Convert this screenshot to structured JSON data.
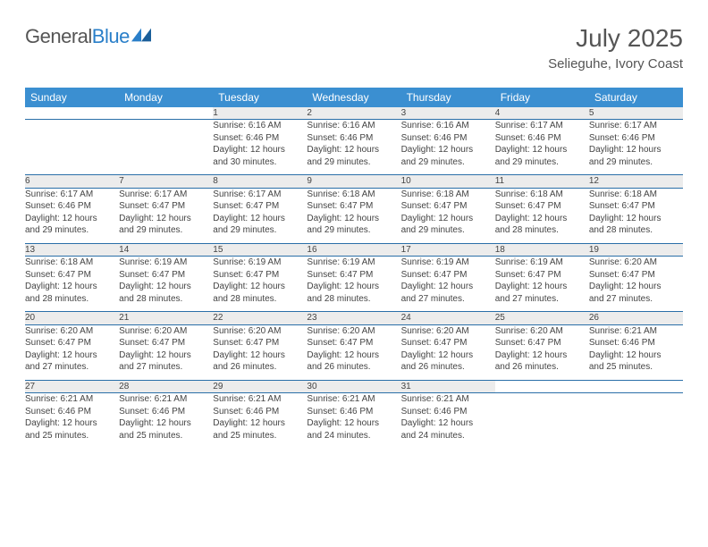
{
  "brand": {
    "part1": "General",
    "part2": "Blue"
  },
  "title": "July 2025",
  "location": "Selieguhe, Ivory Coast",
  "colors": {
    "header_bg": "#3b8fd1",
    "header_text": "#ffffff",
    "daynum_bg": "#ececec",
    "row_border": "#2a6fa8",
    "brand_blue": "#2a7fc9",
    "text": "#444444",
    "background": "#ffffff"
  },
  "weekdays": [
    "Sunday",
    "Monday",
    "Tuesday",
    "Wednesday",
    "Thursday",
    "Friday",
    "Saturday"
  ],
  "weeks": [
    [
      null,
      null,
      {
        "day": "1",
        "sunrise": "Sunrise: 6:16 AM",
        "sunset": "Sunset: 6:46 PM",
        "daylight1": "Daylight: 12 hours",
        "daylight2": "and 30 minutes."
      },
      {
        "day": "2",
        "sunrise": "Sunrise: 6:16 AM",
        "sunset": "Sunset: 6:46 PM",
        "daylight1": "Daylight: 12 hours",
        "daylight2": "and 29 minutes."
      },
      {
        "day": "3",
        "sunrise": "Sunrise: 6:16 AM",
        "sunset": "Sunset: 6:46 PM",
        "daylight1": "Daylight: 12 hours",
        "daylight2": "and 29 minutes."
      },
      {
        "day": "4",
        "sunrise": "Sunrise: 6:17 AM",
        "sunset": "Sunset: 6:46 PM",
        "daylight1": "Daylight: 12 hours",
        "daylight2": "and 29 minutes."
      },
      {
        "day": "5",
        "sunrise": "Sunrise: 6:17 AM",
        "sunset": "Sunset: 6:46 PM",
        "daylight1": "Daylight: 12 hours",
        "daylight2": "and 29 minutes."
      }
    ],
    [
      {
        "day": "6",
        "sunrise": "Sunrise: 6:17 AM",
        "sunset": "Sunset: 6:46 PM",
        "daylight1": "Daylight: 12 hours",
        "daylight2": "and 29 minutes."
      },
      {
        "day": "7",
        "sunrise": "Sunrise: 6:17 AM",
        "sunset": "Sunset: 6:47 PM",
        "daylight1": "Daylight: 12 hours",
        "daylight2": "and 29 minutes."
      },
      {
        "day": "8",
        "sunrise": "Sunrise: 6:17 AM",
        "sunset": "Sunset: 6:47 PM",
        "daylight1": "Daylight: 12 hours",
        "daylight2": "and 29 minutes."
      },
      {
        "day": "9",
        "sunrise": "Sunrise: 6:18 AM",
        "sunset": "Sunset: 6:47 PM",
        "daylight1": "Daylight: 12 hours",
        "daylight2": "and 29 minutes."
      },
      {
        "day": "10",
        "sunrise": "Sunrise: 6:18 AM",
        "sunset": "Sunset: 6:47 PM",
        "daylight1": "Daylight: 12 hours",
        "daylight2": "and 29 minutes."
      },
      {
        "day": "11",
        "sunrise": "Sunrise: 6:18 AM",
        "sunset": "Sunset: 6:47 PM",
        "daylight1": "Daylight: 12 hours",
        "daylight2": "and 28 minutes."
      },
      {
        "day": "12",
        "sunrise": "Sunrise: 6:18 AM",
        "sunset": "Sunset: 6:47 PM",
        "daylight1": "Daylight: 12 hours",
        "daylight2": "and 28 minutes."
      }
    ],
    [
      {
        "day": "13",
        "sunrise": "Sunrise: 6:18 AM",
        "sunset": "Sunset: 6:47 PM",
        "daylight1": "Daylight: 12 hours",
        "daylight2": "and 28 minutes."
      },
      {
        "day": "14",
        "sunrise": "Sunrise: 6:19 AM",
        "sunset": "Sunset: 6:47 PM",
        "daylight1": "Daylight: 12 hours",
        "daylight2": "and 28 minutes."
      },
      {
        "day": "15",
        "sunrise": "Sunrise: 6:19 AM",
        "sunset": "Sunset: 6:47 PM",
        "daylight1": "Daylight: 12 hours",
        "daylight2": "and 28 minutes."
      },
      {
        "day": "16",
        "sunrise": "Sunrise: 6:19 AM",
        "sunset": "Sunset: 6:47 PM",
        "daylight1": "Daylight: 12 hours",
        "daylight2": "and 28 minutes."
      },
      {
        "day": "17",
        "sunrise": "Sunrise: 6:19 AM",
        "sunset": "Sunset: 6:47 PM",
        "daylight1": "Daylight: 12 hours",
        "daylight2": "and 27 minutes."
      },
      {
        "day": "18",
        "sunrise": "Sunrise: 6:19 AM",
        "sunset": "Sunset: 6:47 PM",
        "daylight1": "Daylight: 12 hours",
        "daylight2": "and 27 minutes."
      },
      {
        "day": "19",
        "sunrise": "Sunrise: 6:20 AM",
        "sunset": "Sunset: 6:47 PM",
        "daylight1": "Daylight: 12 hours",
        "daylight2": "and 27 minutes."
      }
    ],
    [
      {
        "day": "20",
        "sunrise": "Sunrise: 6:20 AM",
        "sunset": "Sunset: 6:47 PM",
        "daylight1": "Daylight: 12 hours",
        "daylight2": "and 27 minutes."
      },
      {
        "day": "21",
        "sunrise": "Sunrise: 6:20 AM",
        "sunset": "Sunset: 6:47 PM",
        "daylight1": "Daylight: 12 hours",
        "daylight2": "and 27 minutes."
      },
      {
        "day": "22",
        "sunrise": "Sunrise: 6:20 AM",
        "sunset": "Sunset: 6:47 PM",
        "daylight1": "Daylight: 12 hours",
        "daylight2": "and 26 minutes."
      },
      {
        "day": "23",
        "sunrise": "Sunrise: 6:20 AM",
        "sunset": "Sunset: 6:47 PM",
        "daylight1": "Daylight: 12 hours",
        "daylight2": "and 26 minutes."
      },
      {
        "day": "24",
        "sunrise": "Sunrise: 6:20 AM",
        "sunset": "Sunset: 6:47 PM",
        "daylight1": "Daylight: 12 hours",
        "daylight2": "and 26 minutes."
      },
      {
        "day": "25",
        "sunrise": "Sunrise: 6:20 AM",
        "sunset": "Sunset: 6:47 PM",
        "daylight1": "Daylight: 12 hours",
        "daylight2": "and 26 minutes."
      },
      {
        "day": "26",
        "sunrise": "Sunrise: 6:21 AM",
        "sunset": "Sunset: 6:46 PM",
        "daylight1": "Daylight: 12 hours",
        "daylight2": "and 25 minutes."
      }
    ],
    [
      {
        "day": "27",
        "sunrise": "Sunrise: 6:21 AM",
        "sunset": "Sunset: 6:46 PM",
        "daylight1": "Daylight: 12 hours",
        "daylight2": "and 25 minutes."
      },
      {
        "day": "28",
        "sunrise": "Sunrise: 6:21 AM",
        "sunset": "Sunset: 6:46 PM",
        "daylight1": "Daylight: 12 hours",
        "daylight2": "and 25 minutes."
      },
      {
        "day": "29",
        "sunrise": "Sunrise: 6:21 AM",
        "sunset": "Sunset: 6:46 PM",
        "daylight1": "Daylight: 12 hours",
        "daylight2": "and 25 minutes."
      },
      {
        "day": "30",
        "sunrise": "Sunrise: 6:21 AM",
        "sunset": "Sunset: 6:46 PM",
        "daylight1": "Daylight: 12 hours",
        "daylight2": "and 24 minutes."
      },
      {
        "day": "31",
        "sunrise": "Sunrise: 6:21 AM",
        "sunset": "Sunset: 6:46 PM",
        "daylight1": "Daylight: 12 hours",
        "daylight2": "and 24 minutes."
      },
      null,
      null
    ]
  ]
}
